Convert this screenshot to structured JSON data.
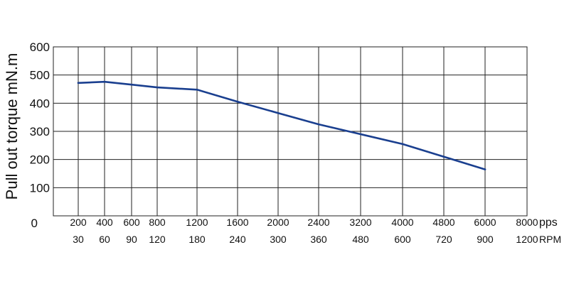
{
  "chart_data": {
    "type": "line",
    "ylabel": "Pull out torque mN.m",
    "ylim": [
      0,
      600
    ],
    "y_ticks": [
      "0",
      "100",
      "200",
      "300",
      "400",
      "500",
      "600"
    ],
    "x_gridlines": [
      "200",
      "400",
      "600",
      "800",
      "1200",
      "1600",
      "2000",
      "2400",
      "3200",
      "4000",
      "4800",
      "6000",
      "8000"
    ],
    "x_tick_labels_pps": [
      "200",
      "400",
      "600",
      "800",
      "1200",
      "1600",
      "2000",
      "2400",
      "3200",
      "4000",
      "4800",
      "6000",
      "8000"
    ],
    "x_tick_labels_rpm": [
      "30",
      "60",
      "90",
      "120",
      "180",
      "240",
      "300",
      "360",
      "480",
      "600",
      "720",
      "900",
      "1200"
    ],
    "x_unit_pps": "pps",
    "x_unit_rpm": "RPM",
    "grid": true,
    "series": [
      {
        "color": "#1a3f8f",
        "points": [
          {
            "x": "200",
            "y": 472
          },
          {
            "x": "400",
            "y": 476
          },
          {
            "x": "600",
            "y": 466
          },
          {
            "x": "800",
            "y": 456
          },
          {
            "x": "1200",
            "y": 448
          },
          {
            "x": "1600",
            "y": 405
          },
          {
            "x": "2000",
            "y": 365
          },
          {
            "x": "2400",
            "y": 325
          },
          {
            "x": "3200",
            "y": 290
          },
          {
            "x": "4000",
            "y": 255
          },
          {
            "x": "4800",
            "y": 210
          },
          {
            "x": "6000",
            "y": 165
          }
        ]
      }
    ]
  }
}
